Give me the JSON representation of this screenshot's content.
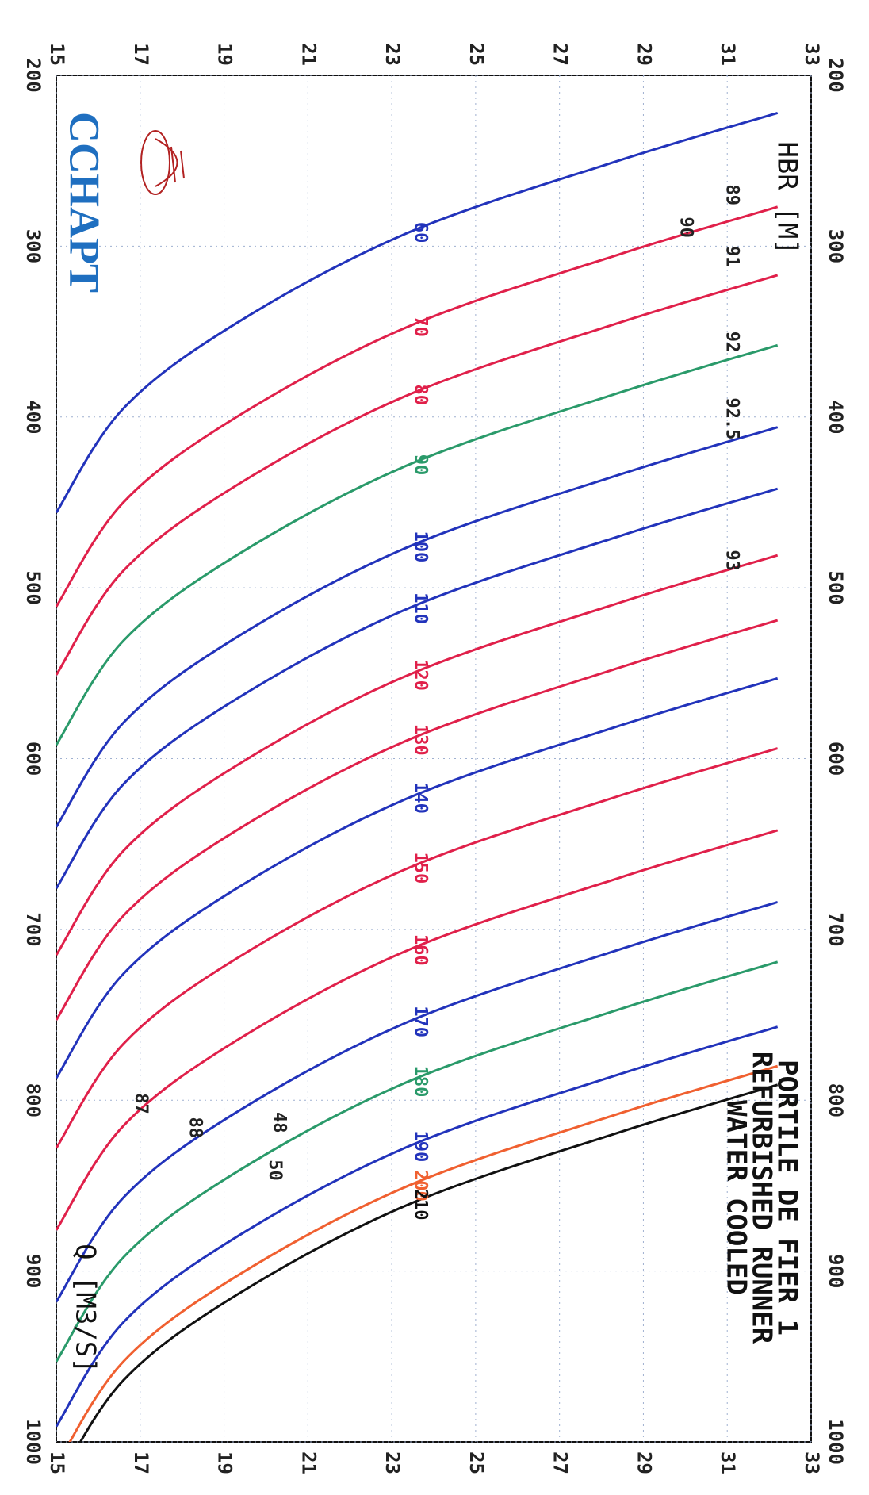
{
  "chart_data": {
    "type": "line",
    "title": [
      "PORTILE DE FIER 1",
      "REFURBISHED RUNNER",
      "WATER COOLED"
    ],
    "xlabel": "Q [M3/S]",
    "ylabel": "HBR [M]",
    "logo": "CCHAPT",
    "xlim": [
      200,
      1000
    ],
    "xticks": [
      200,
      300,
      400,
      500,
      600,
      700,
      800,
      900,
      1000
    ],
    "ylim": [
      15,
      33
    ],
    "yticks": [
      15,
      17,
      19,
      21,
      23,
      25,
      27,
      29,
      31,
      33
    ],
    "grid": true,
    "y": [
      32.2,
      28.4,
      23.4,
      19.3,
      16.6,
      15.0
    ],
    "series": [
      {
        "name": "60",
        "color": "#2233bb",
        "x": [
          222,
          250,
          292,
          345,
          395,
          456
        ]
      },
      {
        "name": "70",
        "color": "#e0204a",
        "x": [
          277,
          305,
          347,
          400,
          450,
          511
        ]
      },
      {
        "name": "80",
        "color": "#e0204a",
        "x": [
          317,
          345,
          387,
          440,
          490,
          551
        ]
      },
      {
        "name": "90",
        "color": "#2a9a6a",
        "x": [
          358,
          386,
          428,
          481,
          531,
          592
        ]
      },
      {
        "name": "100",
        "color": "#2233bb",
        "x": [
          406,
          434,
          476,
          529,
          579,
          640
        ]
      },
      {
        "name": "110",
        "color": "#2233bb",
        "x": [
          442,
          470,
          512,
          565,
          615,
          676
        ]
      },
      {
        "name": "120",
        "color": "#e0204a",
        "x": [
          481,
          509,
          551,
          604,
          654,
          715
        ]
      },
      {
        "name": "130",
        "color": "#e0204a",
        "x": [
          519,
          547,
          589,
          642,
          692,
          753
        ]
      },
      {
        "name": "140",
        "color": "#2233bb",
        "x": [
          553,
          581,
          623,
          676,
          726,
          787
        ]
      },
      {
        "name": "150",
        "color": "#e0204a",
        "x": [
          594,
          622,
          664,
          717,
          767,
          828
        ]
      },
      {
        "name": "160",
        "color": "#e0204a",
        "x": [
          642,
          670,
          712,
          765,
          815,
          876
        ]
      },
      {
        "name": "170",
        "color": "#2233bb",
        "x": [
          684,
          712,
          754,
          807,
          857,
          918
        ]
      },
      {
        "name": "180",
        "color": "#2a9a6a",
        "x": [
          719,
          747,
          789,
          842,
          892,
          953
        ]
      },
      {
        "name": "190",
        "color": "#2233bb",
        "x": [
          757,
          785,
          827,
          880,
          930,
          991
        ]
      },
      {
        "name": "200",
        "color": "#f06030",
        "x": [
          780,
          808,
          850,
          903,
          953,
          1014
        ]
      },
      {
        "name": "210",
        "color": "#111111",
        "x": [
          791,
          819,
          861,
          914,
          964,
          1025
        ]
      }
    ],
    "annotations": [
      {
        "text": "93",
        "x": 484,
        "y": 31.1
      },
      {
        "text": "92.5",
        "x": 401,
        "y": 31.1
      },
      {
        "text": "92",
        "x": 356,
        "y": 31.1
      },
      {
        "text": "91",
        "x": 306,
        "y": 31.1
      },
      {
        "text": "90",
        "x": 289,
        "y": 30.0
      },
      {
        "text": "89",
        "x": 270,
        "y": 31.1
      },
      {
        "text": "88",
        "x": 816,
        "y": 18.3
      },
      {
        "text": "87",
        "x": 802,
        "y": 17.0
      },
      {
        "text": "48",
        "x": 813,
        "y": 20.3
      },
      {
        "text": "50",
        "x": 841,
        "y": 20.2
      }
    ]
  }
}
